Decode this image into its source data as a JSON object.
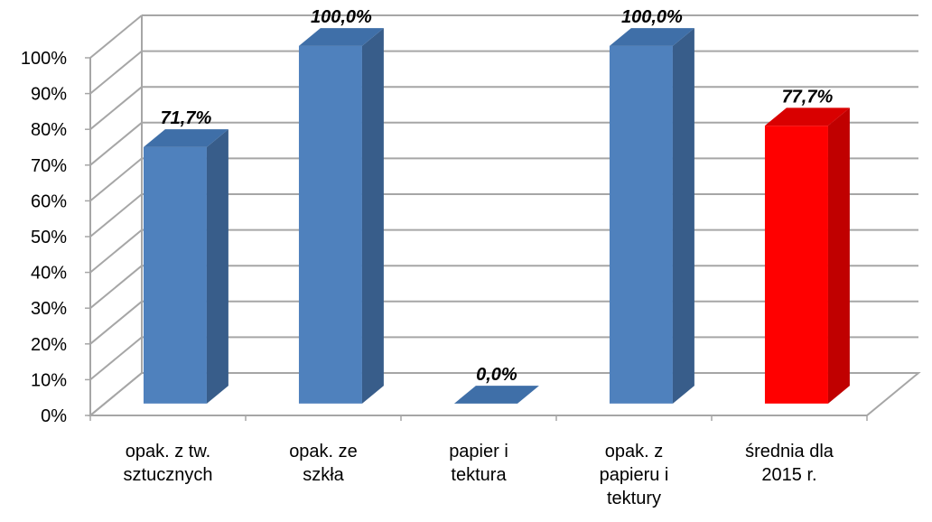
{
  "chart_data": {
    "type": "bar",
    "categories": [
      [
        "opak. z tw.",
        "sztucznych"
      ],
      [
        "opak. ze",
        "szkła"
      ],
      [
        "papier i",
        "tektura"
      ],
      [
        "opak. z",
        "papieru i",
        "tektury"
      ],
      [
        "średnia dla",
        "2015 r."
      ]
    ],
    "values": [
      71.7,
      100.0,
      0.0,
      100.0,
      77.7
    ],
    "data_labels": [
      "71,7%",
      "100,0%",
      "0,0%",
      "100,0%",
      "77,7%"
    ],
    "ytick_labels": [
      "0%",
      "10%",
      "20%",
      "30%",
      "40%",
      "50%",
      "60%",
      "70%",
      "80%",
      "90%",
      "100%"
    ],
    "ylim": [
      0,
      100
    ],
    "title": "",
    "xlabel": "",
    "ylabel": "",
    "grid": true,
    "legend": "none",
    "three_d": true,
    "colors": {
      "bar_front": "#4F81BD",
      "bar_side": "#385D8A",
      "bar_top": "#3F6FA8",
      "highlight_front": "#FF0000",
      "highlight_side": "#C00000",
      "highlight_top": "#D90000",
      "grid": "#A6A6A6"
    },
    "highlight_index": 4
  }
}
